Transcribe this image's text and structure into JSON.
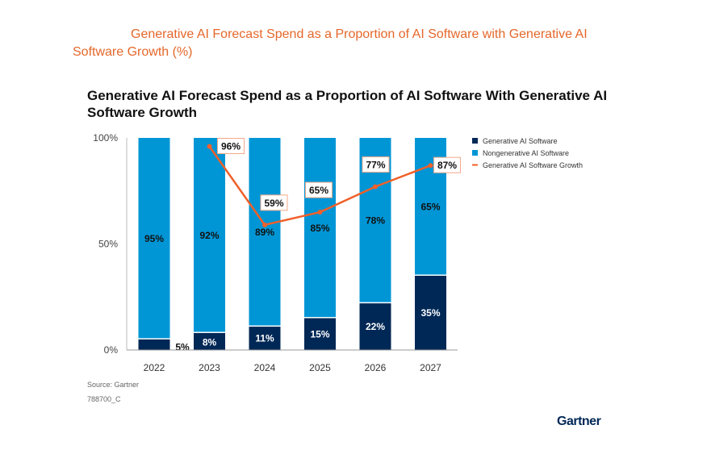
{
  "header": {
    "title": "Generative AI Forecast Spend as a Proportion of AI Software with Generative AI Software Growth (%)"
  },
  "chart_data": {
    "type": "bar",
    "stacked": true,
    "title": "Generative AI Forecast Spend as a Proportion of AI  Software With Generative AI Software Growth",
    "categories": [
      "2022",
      "2023",
      "2024",
      "2025",
      "2026",
      "2027"
    ],
    "series": [
      {
        "name": "Generative AI Software",
        "values": [
          5,
          8,
          11,
          15,
          22,
          35
        ],
        "color": "#002856"
      },
      {
        "name": "Nongenerative  AI Software",
        "values": [
          95,
          92,
          89,
          85,
          78,
          65
        ],
        "color": "#0096d6"
      },
      {
        "name": "Generative AI Software Growth",
        "type": "line",
        "values": [
          null,
          96,
          59,
          65,
          77,
          87
        ],
        "color": "#f0602a"
      }
    ],
    "yticks": [
      "0%",
      "50%",
      "100%"
    ],
    "ylim": [
      0,
      100
    ],
    "legend": "top-right"
  },
  "footer": {
    "source": "Source: Gartner",
    "id": "788700_C",
    "logo": "Gartner"
  }
}
